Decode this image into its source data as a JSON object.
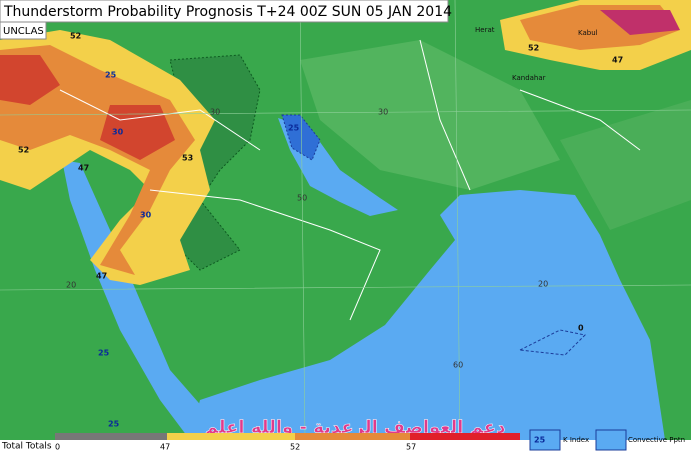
{
  "header": {
    "title": "Thunderstorm Probability Prognosis T+24 00Z SUN 05 JAN 2014",
    "classification": "UNCLAS"
  },
  "map": {
    "places": [
      "Herat",
      "Kabul",
      "Kandahar"
    ],
    "grid_labels": [
      "30",
      "50",
      "20",
      "20",
      "60",
      "30"
    ],
    "contour_labels": [
      "25",
      "30",
      "52",
      "47",
      "53",
      "25",
      "47",
      "25",
      "25",
      "0",
      "52",
      "47",
      "30",
      "52"
    ]
  },
  "watermark": "دعم العواصف الرعدية - والله اعلم",
  "legend": {
    "title": "Total Totals",
    "ticks": [
      "0",
      "47",
      "52",
      "57"
    ],
    "k_index": {
      "sample": "25",
      "label": "K Index"
    },
    "convective": {
      "label": "Convective Pptn"
    }
  }
}
